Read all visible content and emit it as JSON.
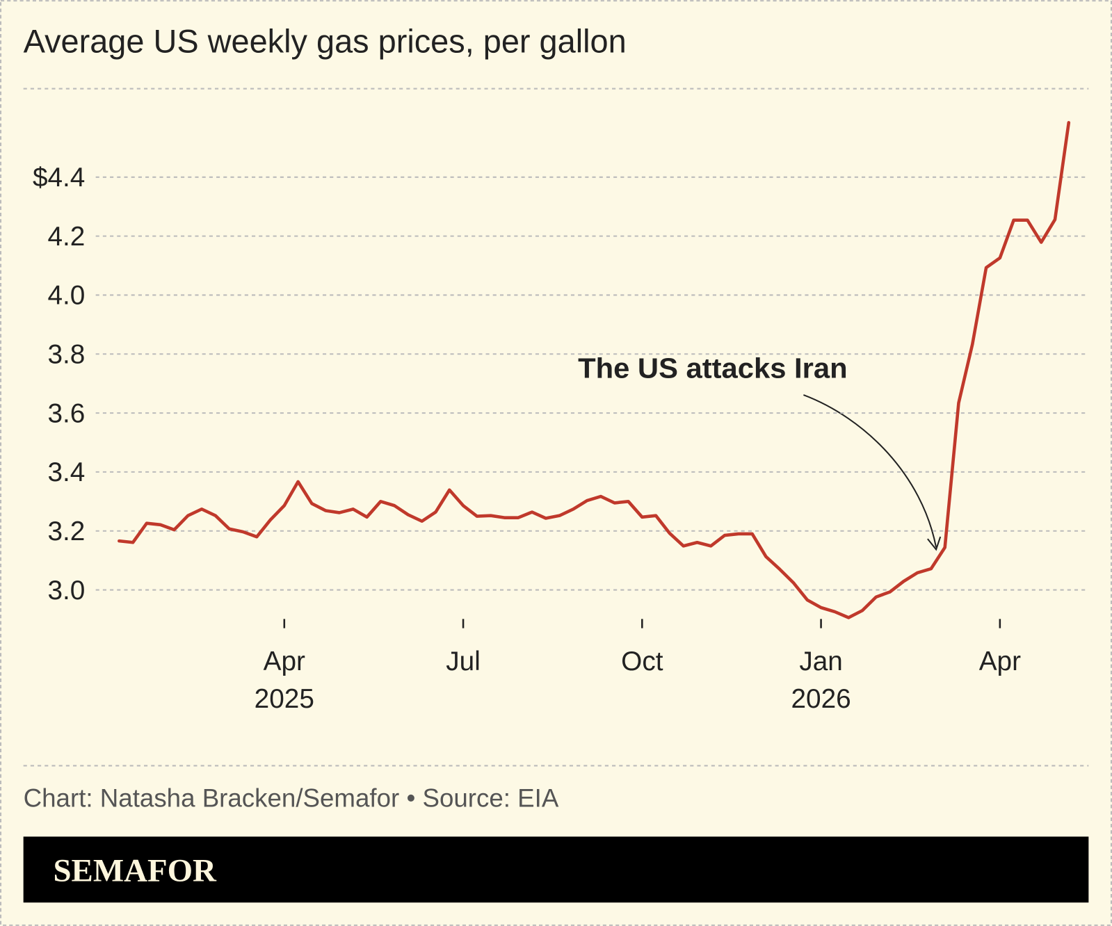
{
  "chart_data": {
    "type": "line",
    "title": "Average US weekly gas prices, per gallon",
    "annotation": "The US attacks Iran",
    "credit": "Chart: Natasha Bracken/Semafor • Source: EIA",
    "brand": "SEMAFOR",
    "color": "#c0392b",
    "categories": [
      null,
      null,
      null,
      null,
      null,
      null,
      null,
      null,
      null,
      null,
      null,
      null,
      "Apr",
      null,
      null,
      null,
      null,
      null,
      null,
      null,
      null,
      null,
      null,
      null,
      null,
      "Jul",
      null,
      null,
      null,
      null,
      null,
      null,
      null,
      null,
      null,
      null,
      null,
      null,
      "Oct",
      null,
      null,
      null,
      null,
      null,
      null,
      null,
      null,
      null,
      null,
      null,
      null,
      "Jan",
      null,
      null,
      null,
      null,
      null,
      null,
      null,
      null,
      null,
      null,
      null,
      null,
      "Apr",
      null,
      null,
      null,
      null,
      null
    ],
    "category_years": [
      null,
      null,
      null,
      null,
      null,
      null,
      null,
      null,
      null,
      null,
      null,
      null,
      "2025",
      null,
      null,
      null,
      null,
      null,
      null,
      null,
      null,
      null,
      null,
      null,
      null,
      null,
      null,
      null,
      null,
      null,
      null,
      null,
      null,
      null,
      null,
      null,
      null,
      null,
      null,
      null,
      null,
      null,
      null,
      null,
      null,
      null,
      null,
      null,
      null,
      null,
      null,
      "2026",
      null,
      null,
      null,
      null,
      null,
      null,
      null,
      null,
      null,
      null,
      null,
      null,
      null,
      null,
      null,
      null,
      null,
      null
    ],
    "values": [
      3.166,
      3.161,
      3.226,
      3.221,
      3.204,
      3.252,
      3.274,
      3.252,
      3.207,
      3.197,
      3.18,
      3.238,
      3.286,
      3.367,
      3.293,
      3.269,
      3.262,
      3.274,
      3.247,
      3.3,
      3.286,
      3.255,
      3.233,
      3.264,
      3.339,
      3.286,
      3.25,
      3.252,
      3.245,
      3.245,
      3.264,
      3.243,
      3.252,
      3.274,
      3.303,
      3.317,
      3.295,
      3.3,
      3.247,
      3.252,
      3.192,
      3.149,
      3.161,
      3.149,
      3.185,
      3.19,
      3.19,
      3.113,
      3.07,
      3.024,
      2.966,
      2.94,
      2.926,
      2.906,
      2.93,
      2.976,
      2.993,
      3.029,
      3.058,
      3.072,
      3.144,
      3.634,
      3.833,
      4.093,
      4.126,
      4.254,
      4.254,
      4.179,
      4.256,
      4.585
    ],
    "ylim": [
      2.9,
      4.7
    ],
    "yticks": [
      {
        "value": 3.0,
        "label": "3.0"
      },
      3.2,
      3.4,
      3.6,
      3.8,
      {
        "value": 4.0,
        "label": "4.0"
      },
      4.2,
      {
        "value": 4.4,
        "label": "$4.4"
      }
    ],
    "grid": true
  }
}
